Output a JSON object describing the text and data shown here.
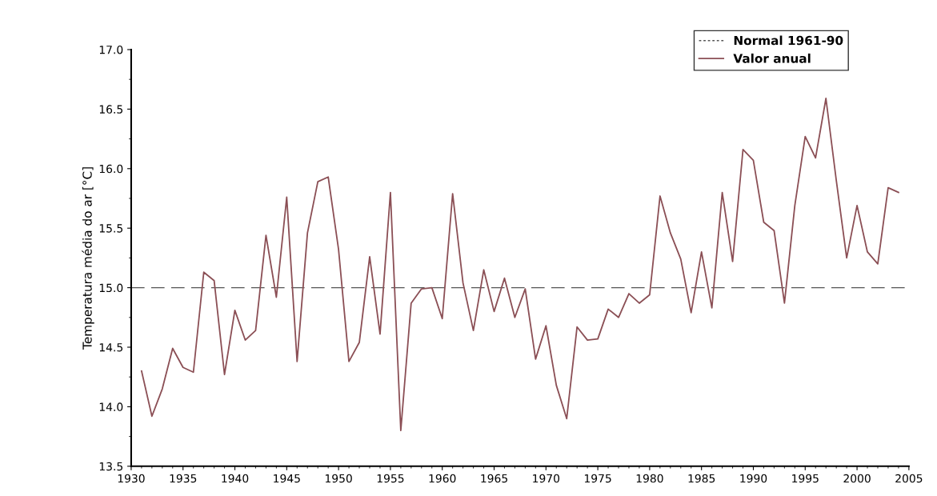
{
  "chart_data": {
    "type": "line",
    "ylabel": "Temperatura média do ar [°C]",
    "x": [
      1931,
      1932,
      1933,
      1934,
      1935,
      1936,
      1937,
      1938,
      1939,
      1940,
      1941,
      1942,
      1943,
      1944,
      1945,
      1946,
      1947,
      1948,
      1949,
      1950,
      1951,
      1952,
      1953,
      1954,
      1955,
      1956,
      1957,
      1958,
      1959,
      1960,
      1961,
      1962,
      1963,
      1964,
      1965,
      1966,
      1967,
      1968,
      1969,
      1970,
      1971,
      1972,
      1973,
      1974,
      1975,
      1976,
      1977,
      1978,
      1979,
      1980,
      1981,
      1982,
      1983,
      1984,
      1985,
      1986,
      1987,
      1988,
      1989,
      1990,
      1991,
      1992,
      1993,
      1994,
      1995,
      1996,
      1997,
      1998,
      1999,
      2000,
      2001,
      2002,
      2003,
      2004
    ],
    "series": [
      {
        "name": "Valor anual",
        "color": "#8b4f55",
        "values": [
          14.3,
          13.92,
          14.15,
          14.49,
          14.33,
          14.29,
          15.13,
          15.06,
          14.27,
          14.81,
          14.56,
          14.64,
          15.44,
          14.92,
          15.76,
          14.38,
          15.46,
          15.89,
          15.93,
          15.32,
          14.38,
          14.54,
          15.26,
          14.61,
          15.8,
          13.8,
          14.87,
          14.99,
          15.0,
          14.74,
          15.79,
          15.04,
          14.64,
          15.15,
          14.8,
          15.08,
          14.75,
          14.99,
          14.4,
          14.68,
          14.18,
          13.9,
          14.67,
          14.56,
          14.57,
          14.82,
          14.75,
          14.95,
          14.87,
          14.94,
          15.77,
          15.46,
          15.24,
          14.79,
          15.3,
          14.83,
          15.8,
          15.22,
          16.16,
          16.07,
          15.55,
          15.48,
          14.87,
          15.69,
          16.27,
          16.09,
          16.59,
          15.9,
          15.25,
          15.69,
          15.3,
          15.2,
          15.84,
          15.8
        ]
      }
    ],
    "ref_lines": [
      {
        "axis": "y",
        "value": 15.0,
        "label": "Normal 1961-90",
        "color": "#555555",
        "line_style": "dashed"
      }
    ],
    "xlim": [
      1930,
      2005
    ],
    "xticks": [
      1930,
      1935,
      1940,
      1945,
      1950,
      1955,
      1960,
      1965,
      1970,
      1975,
      1980,
      1985,
      1990,
      1995,
      2000,
      2005
    ],
    "ylim": [
      13.5,
      17.0
    ],
    "yticks": [
      {
        "value": 13.5,
        "label": "13.5"
      },
      {
        "value": 14.0,
        "label": "14.0"
      },
      {
        "value": 14.5,
        "label": "14.5"
      },
      {
        "value": 15.0,
        "label": "15.0"
      },
      {
        "value": 15.5,
        "label": "15.5"
      },
      {
        "value": 16.0,
        "label": "16.0"
      },
      {
        "value": 16.5,
        "label": "16.5"
      },
      {
        "value": 17.0,
        "label": "17.0"
      }
    ],
    "legend": "top right",
    "grid": false,
    "marker": "none",
    "line_style": "solid"
  }
}
